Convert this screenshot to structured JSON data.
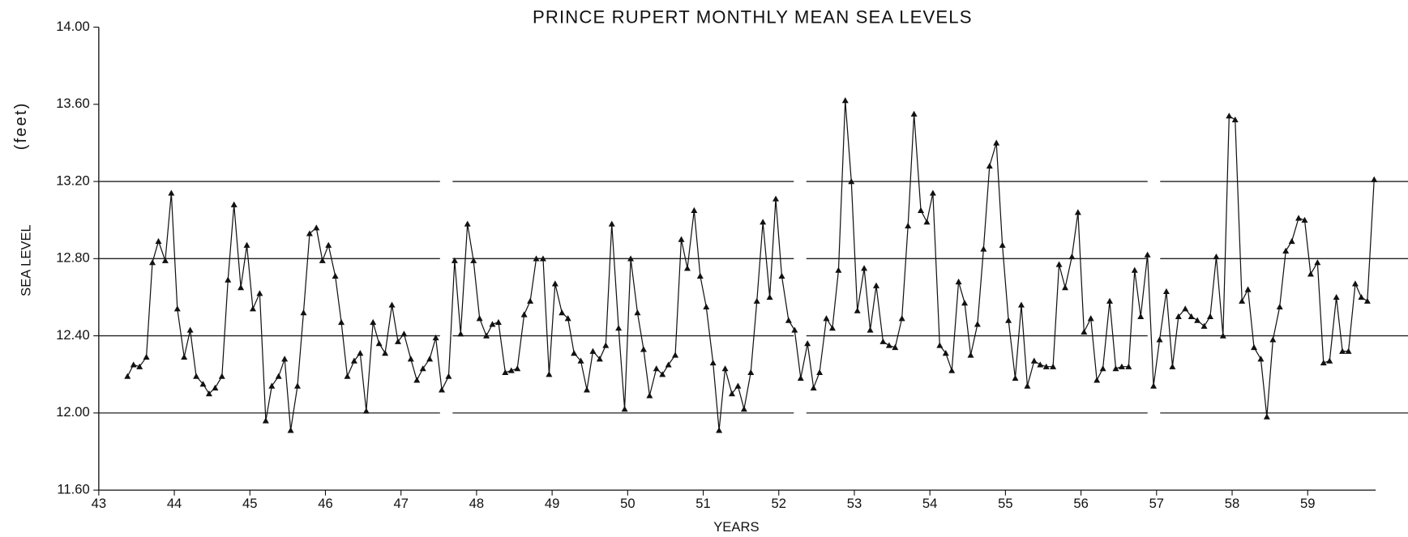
{
  "chart_data": {
    "type": "line",
    "title": "PRINCE RUPERT MONTHLY MEAN SEA LEVELS",
    "xlabel": "YEARS",
    "ylabel": "SEA LEVEL",
    "yunit": "(feet)",
    "xlim": [
      43,
      59.9
    ],
    "ylim": [
      11.6,
      14.0
    ],
    "xticks": [
      43,
      44,
      45,
      46,
      47,
      48,
      49,
      50,
      51,
      52,
      53,
      54,
      55,
      56,
      57,
      58,
      59
    ],
    "yticks": [
      {
        "value": 11.6,
        "label": "11.60"
      },
      {
        "value": 12.0,
        "label": "12.00"
      },
      {
        "value": 12.4,
        "label": "12.40"
      },
      {
        "value": 12.8,
        "label": "12.80"
      },
      {
        "value": 13.2,
        "label": "13.20"
      },
      {
        "value": 13.6,
        "label": "13.60"
      },
      {
        "value": 14.0,
        "label": "14.00"
      }
    ],
    "reference_lines": [
      12.0,
      12.4,
      12.8,
      13.2
    ],
    "color": "#111111",
    "marker": "triangle",
    "x": [
      43.38,
      43.46,
      43.54,
      43.63,
      43.71,
      43.79,
      43.88,
      43.96,
      44.04,
      44.13,
      44.21,
      44.29,
      44.38,
      44.46,
      44.54,
      44.63,
      44.71,
      44.79,
      44.88,
      44.96,
      45.04,
      45.13,
      45.21,
      45.29,
      45.38,
      45.46,
      45.54,
      45.63,
      45.71,
      45.79,
      45.88,
      45.96,
      46.04,
      46.13,
      46.21,
      46.29,
      46.38,
      46.46,
      46.54,
      46.63,
      46.71,
      46.79,
      46.88,
      46.96,
      47.04,
      47.13,
      47.21,
      47.29,
      47.38,
      47.46,
      47.54,
      47.63,
      47.71,
      47.79,
      47.88,
      47.96,
      48.04,
      48.13,
      48.21,
      48.29,
      48.38,
      48.46,
      48.54,
      48.63,
      48.71,
      48.79,
      48.88,
      48.96,
      49.04,
      49.13,
      49.21,
      49.29,
      49.38,
      49.46,
      49.54,
      49.63,
      49.71,
      49.79,
      49.88,
      49.96,
      50.04,
      50.13,
      50.21,
      50.29,
      50.38,
      50.46,
      50.54,
      50.63,
      50.71,
      50.79,
      50.88,
      50.96,
      51.04,
      51.13,
      51.21,
      51.29,
      51.38,
      51.46,
      51.54,
      51.63,
      51.71,
      51.79,
      51.88,
      51.96,
      52.04,
      52.13,
      52.21,
      52.29,
      52.38,
      52.46,
      52.54,
      52.63,
      52.71,
      52.79,
      52.88,
      52.96,
      53.04,
      53.13,
      53.21,
      53.29,
      53.38,
      53.46,
      53.54,
      53.63,
      53.71,
      53.79,
      53.88,
      53.96,
      54.04,
      54.13,
      54.21,
      54.29,
      54.38,
      54.46,
      54.54,
      54.63,
      54.71,
      54.79,
      54.88,
      54.96,
      55.04,
      55.13,
      55.21,
      55.29,
      55.38,
      55.46,
      55.54,
      55.63,
      55.71,
      55.79,
      55.88,
      55.96,
      56.04,
      56.13,
      56.21,
      56.29,
      56.38,
      56.46,
      56.54,
      56.63,
      56.71,
      56.79,
      56.88,
      56.96,
      57.04,
      57.13,
      57.21,
      57.29,
      57.38,
      57.46,
      57.54,
      57.63,
      57.71,
      57.79,
      57.88,
      57.96,
      58.04,
      58.13,
      58.21,
      58.29,
      58.38,
      58.46,
      58.54,
      58.63,
      58.71,
      58.79,
      58.88,
      58.96,
      59.04,
      59.13,
      59.21,
      59.29,
      59.38,
      59.46,
      59.54,
      59.63,
      59.71,
      59.79,
      59.88
    ],
    "values": [
      12.19,
      12.25,
      12.24,
      12.29,
      12.78,
      12.89,
      12.79,
      13.14,
      12.54,
      12.29,
      12.43,
      12.19,
      12.15,
      12.1,
      12.13,
      12.19,
      12.69,
      13.08,
      12.65,
      12.87,
      12.54,
      12.62,
      11.96,
      12.14,
      12.19,
      12.28,
      11.91,
      12.14,
      12.52,
      12.93,
      12.96,
      12.79,
      12.87,
      12.71,
      12.47,
      12.19,
      12.27,
      12.31,
      12.01,
      12.47,
      12.36,
      12.31,
      12.56,
      12.37,
      12.41,
      12.28,
      12.17,
      12.23,
      12.28,
      12.39,
      12.12,
      12.19,
      12.79,
      12.41,
      12.98,
      12.79,
      12.49,
      12.4,
      12.46,
      12.47,
      12.21,
      12.22,
      12.23,
      12.51,
      12.58,
      12.8,
      12.8,
      12.2,
      12.67,
      12.52,
      12.49,
      12.31,
      12.27,
      12.12,
      12.32,
      12.28,
      12.35,
      12.98,
      12.44,
      12.02,
      12.8,
      12.52,
      12.33,
      12.09,
      12.23,
      12.2,
      12.25,
      12.3,
      12.9,
      12.75,
      13.05,
      12.71,
      12.55,
      12.26,
      11.91,
      12.23,
      12.1,
      12.14,
      12.02,
      12.21,
      12.58,
      12.99,
      12.6,
      13.11,
      12.71,
      12.48,
      12.43,
      12.18,
      12.36,
      12.13,
      12.21,
      12.49,
      12.44,
      12.74,
      13.62,
      13.2,
      12.53,
      12.75,
      12.43,
      12.66,
      12.37,
      12.35,
      12.34,
      12.49,
      12.97,
      13.55,
      13.05,
      12.99,
      13.14,
      12.35,
      12.31,
      12.22,
      12.68,
      12.57,
      12.3,
      12.46,
      12.85,
      13.28,
      13.4,
      12.87,
      12.48,
      12.18,
      12.56,
      12.14,
      12.27,
      12.25,
      12.24,
      12.24,
      12.77,
      12.65,
      12.81,
      13.04,
      12.42,
      12.49,
      12.17,
      12.23,
      12.58,
      12.23,
      12.24,
      12.24,
      12.74,
      12.5,
      12.82,
      12.14,
      12.38,
      12.63,
      12.24,
      12.5,
      12.54,
      12.5,
      12.48,
      12.45,
      12.5,
      12.81,
      12.4,
      13.54,
      13.52,
      12.58,
      12.64,
      12.34,
      12.28,
      11.98,
      12.38,
      12.55,
      12.84,
      12.89,
      13.01,
      13.0,
      12.72,
      12.78,
      12.26,
      12.27,
      12.6,
      12.32,
      12.32,
      12.67,
      12.6,
      12.58,
      13.21
    ]
  }
}
